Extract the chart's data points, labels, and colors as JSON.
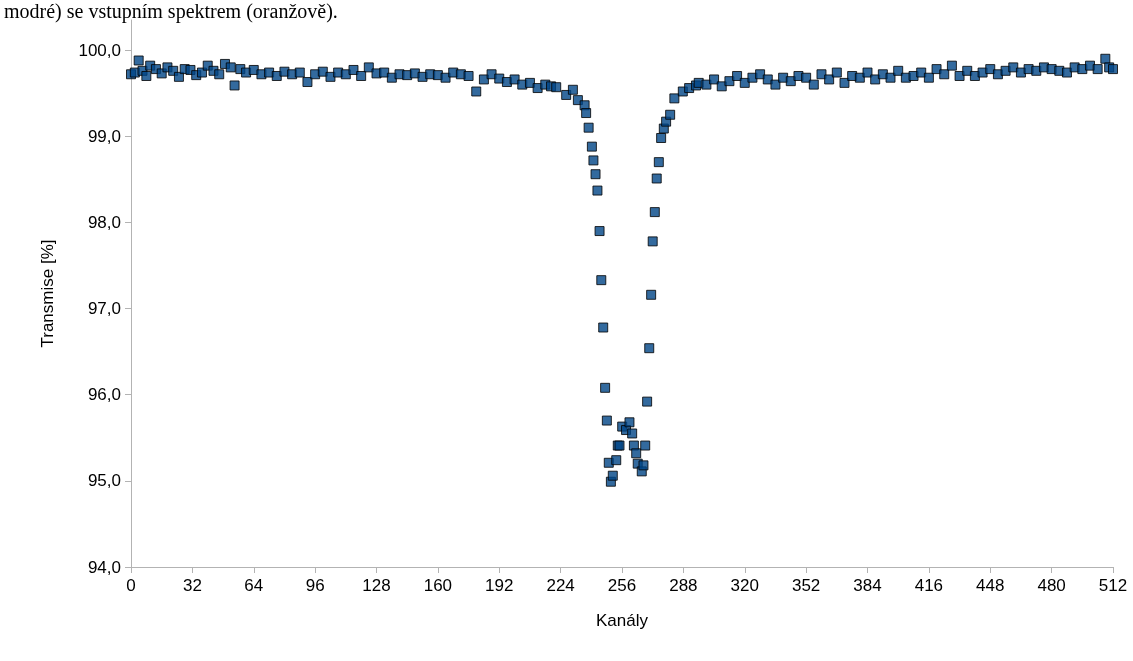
{
  "chart_data": {
    "type": "scatter",
    "xlabel": "Kanály",
    "ylabel": "Transmise [%]",
    "annotations": [
      "modré) se vstupním spektrem (oranžově)."
    ],
    "marker": "square",
    "xlim": [
      0,
      512
    ],
    "xticks": [
      0,
      32,
      64,
      96,
      128,
      160,
      192,
      224,
      256,
      288,
      320,
      352,
      384,
      416,
      448,
      480,
      512
    ],
    "ylim": [
      94,
      100.35
    ],
    "yticks": [
      {
        "value": 94,
        "label": "94,0"
      },
      {
        "value": 95,
        "label": "95,0"
      },
      {
        "value": 96,
        "label": "96,0"
      },
      {
        "value": 97,
        "label": "97,0"
      },
      {
        "value": 98,
        "label": "98,0"
      },
      {
        "value": 99,
        "label": "99,0"
      },
      {
        "value": 100,
        "label": "100,0"
      }
    ],
    "series": [
      {
        "color": "#004586",
        "x": [
          0,
          2,
          4,
          6,
          8,
          10,
          13,
          16,
          19,
          22,
          25,
          28,
          31,
          34,
          37,
          40,
          43,
          46,
          49,
          52,
          54,
          57,
          60,
          64,
          68,
          72,
          76,
          80,
          84,
          88,
          92,
          96,
          100,
          104,
          108,
          112,
          116,
          120,
          124,
          128,
          132,
          136,
          140,
          144,
          148,
          152,
          156,
          160,
          164,
          168,
          172,
          176,
          180,
          184,
          188,
          192,
          196,
          200,
          204,
          208,
          212,
          216,
          219,
          221.7,
          226.9,
          230.4,
          233,
          236.5,
          237.3,
          238.6,
          240.3,
          241.1,
          242.2,
          243.2,
          244.3,
          245.2,
          246.2,
          247.2,
          248.1,
          249.1,
          250.2,
          251.2,
          253,
          253.8,
          254.7,
          256.1,
          258.1,
          259.9,
          261.3,
          262.2,
          263.4,
          264.2,
          266.3,
          267.2,
          268.1,
          269.1,
          270.2,
          271.2,
          272,
          273.1,
          274.1,
          275.2,
          276.4,
          277.8,
          279,
          281.1,
          283.3,
          287.7,
          291,
          294.6,
          296,
          300,
          304,
          308,
          312,
          316,
          320,
          324,
          328,
          332,
          336,
          340,
          344,
          348,
          352,
          356,
          360,
          364,
          368,
          372,
          376,
          380,
          384,
          388,
          392,
          396,
          400,
          404,
          408,
          412,
          416,
          420,
          424,
          428,
          432,
          436,
          440,
          444,
          448,
          452,
          456,
          460,
          464,
          468,
          472,
          476,
          480,
          484,
          488,
          492,
          496,
          500,
          504,
          508,
          510,
          512
        ],
        "values": [
          99.72,
          99.74,
          99.88,
          99.76,
          99.7,
          99.82,
          99.78,
          99.73,
          99.8,
          99.76,
          99.69,
          99.78,
          99.77,
          99.71,
          99.74,
          99.82,
          99.76,
          99.72,
          99.84,
          99.8,
          99.59,
          99.78,
          99.74,
          99.77,
          99.72,
          99.74,
          99.7,
          99.75,
          99.72,
          99.74,
          99.63,
          99.72,
          99.75,
          99.69,
          99.74,
          99.72,
          99.77,
          99.7,
          99.8,
          99.73,
          99.74,
          99.68,
          99.72,
          99.71,
          99.73,
          99.69,
          99.72,
          99.71,
          99.68,
          99.74,
          99.72,
          99.7,
          99.52,
          99.66,
          99.72,
          99.67,
          99.63,
          99.66,
          99.6,
          99.62,
          99.56,
          99.6,
          99.58,
          99.57,
          99.48,
          99.54,
          99.42,
          99.36,
          99.27,
          99.1,
          98.88,
          98.72,
          98.56,
          98.37,
          97.9,
          97.33,
          96.78,
          96.08,
          95.7,
          95.21,
          94.99,
          95.06,
          95.24,
          95.41,
          95.41,
          95.63,
          95.59,
          95.68,
          95.55,
          95.41,
          95.32,
          95.2,
          95.11,
          95.18,
          95.41,
          95.92,
          96.54,
          97.16,
          97.78,
          98.12,
          98.51,
          98.7,
          98.98,
          99.09,
          99.17,
          99.25,
          99.44,
          99.52,
          99.56,
          99.59,
          99.62,
          99.6,
          99.66,
          99.58,
          99.64,
          99.7,
          99.62,
          99.68,
          99.72,
          99.66,
          99.6,
          99.68,
          99.64,
          99.7,
          99.68,
          99.6,
          99.72,
          99.66,
          99.74,
          99.62,
          99.7,
          99.68,
          99.74,
          99.66,
          99.72,
          99.68,
          99.76,
          99.68,
          99.7,
          99.74,
          99.68,
          99.78,
          99.72,
          99.82,
          99.7,
          99.76,
          99.7,
          99.74,
          99.78,
          99.72,
          99.76,
          99.8,
          99.74,
          99.78,
          99.76,
          99.8,
          99.78,
          99.76,
          99.74,
          99.8,
          99.78,
          99.82,
          99.78,
          99.9,
          99.8,
          99.78
        ]
      }
    ]
  }
}
